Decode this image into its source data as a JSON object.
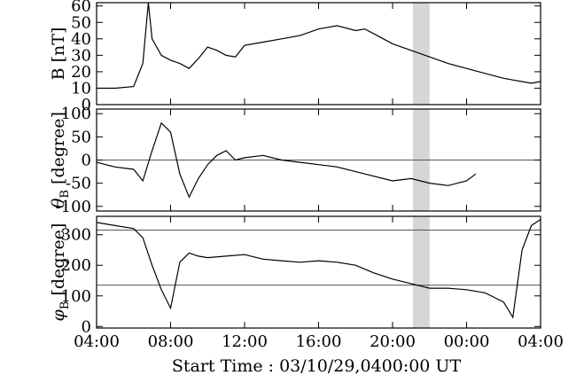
{
  "chart_data": {
    "type": "line",
    "xlabel": "Start Time : 03/10/29,0400:00 UT",
    "x_ticks": [
      "04:00",
      "08:00",
      "12:00",
      "16:00",
      "20:00",
      "00:00",
      "04:00"
    ],
    "x_range_hours": [
      4,
      28
    ],
    "shaded_interval_hours": [
      21.1,
      22.0
    ],
    "panels": [
      {
        "name": "B",
        "ylabel": "B [nT]",
        "ylim": [
          0,
          62
        ],
        "y_ticks": [
          0,
          10,
          20,
          30,
          40,
          50,
          60
        ],
        "ref_lines": [],
        "x": [
          4.0,
          5.0,
          6.0,
          6.5,
          6.8,
          7.0,
          7.5,
          8.0,
          8.5,
          9.0,
          9.5,
          10.0,
          10.5,
          11.0,
          11.5,
          12.0,
          13.0,
          14.0,
          15.0,
          16.0,
          17.0,
          18.0,
          18.5,
          19.0,
          20.0,
          21.0,
          22.0,
          23.0,
          24.0,
          25.0,
          26.0,
          26.5,
          27.0,
          27.5,
          28.0
        ],
        "y": [
          10,
          10,
          11,
          25,
          62,
          40,
          30,
          27,
          25,
          22,
          28,
          35,
          33,
          30,
          29,
          36,
          38,
          40,
          42,
          46,
          48,
          45,
          46,
          43,
          37,
          33,
          29,
          25,
          22,
          19,
          16,
          15,
          14,
          13,
          14
        ]
      },
      {
        "name": "theta_B",
        "ylabel": "θ",
        "ylabel_sub": "B",
        "ylabel_unit": " [degree]",
        "ylim": [
          -110,
          110
        ],
        "y_ticks": [
          -100,
          -50,
          0,
          50,
          100
        ],
        "ref_lines": [
          0
        ],
        "x": [
          4.0,
          5.0,
          6.0,
          6.5,
          7.0,
          7.5,
          8.0,
          8.5,
          9.0,
          9.5,
          10.0,
          10.5,
          11.0,
          11.5,
          12.0,
          13.0,
          14.0,
          15.0,
          16.0,
          17.0,
          18.0,
          19.0,
          20.0,
          21.0,
          22.0,
          23.0,
          24.0,
          24.5
        ],
        "y": [
          -5,
          -15,
          -20,
          -45,
          20,
          80,
          60,
          -30,
          -80,
          -40,
          -10,
          10,
          20,
          0,
          5,
          10,
          0,
          -5,
          -10,
          -15,
          -25,
          -35,
          -45,
          -40,
          -50,
          -55,
          -45,
          -30
        ]
      },
      {
        "name": "phi_B",
        "ylabel": "φ",
        "ylabel_sub": "B",
        "ylabel_unit": " [degree]",
        "ylim": [
          -5,
          360
        ],
        "y_ticks": [
          0,
          100,
          200,
          300
        ],
        "ref_lines": [
          315,
          135
        ],
        "x": [
          4.0,
          5.0,
          6.0,
          6.5,
          7.0,
          7.5,
          8.0,
          8.5,
          9.0,
          9.5,
          10.0,
          11.0,
          12.0,
          13.0,
          14.0,
          15.0,
          16.0,
          17.0,
          18.0,
          19.0,
          20.0,
          21.0,
          22.0,
          23.0,
          24.0,
          25.0,
          25.5,
          26.0,
          26.5,
          27.0,
          27.5,
          28.0
        ],
        "y": [
          340,
          330,
          320,
          290,
          200,
          120,
          60,
          210,
          240,
          230,
          225,
          230,
          235,
          220,
          215,
          210,
          215,
          210,
          200,
          175,
          155,
          140,
          125,
          125,
          120,
          110,
          95,
          80,
          30,
          250,
          330,
          350
        ]
      }
    ]
  }
}
